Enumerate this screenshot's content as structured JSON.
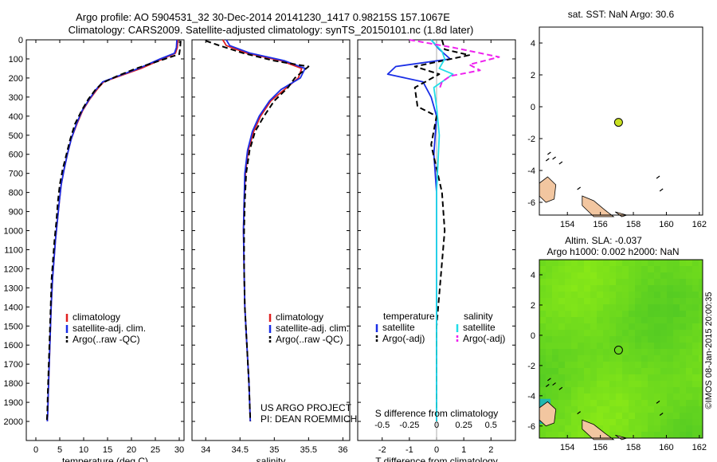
{
  "title": {
    "line1": "Argo profile: AO 5904531_32 30-Dec-2014 20141230_1417 0.98215S 157.1067E",
    "line2": "Climatology: CARS2009. Satellite-adjusted climatology: synTS_20150101.nc (1.8d later)"
  },
  "credit": "©IMOS 08-Jan-2015 20:00:35",
  "colors": {
    "climatology": "#e02020",
    "satellite": "#1a2ee6",
    "argo": "#000000",
    "salinity_satellite": "#22dde8",
    "salinity_argo": "#ee22ee",
    "land": "#f2c6a0",
    "float_marker": "#c8e020"
  },
  "chart_data": [
    {
      "type": "line",
      "name": "temperature-profile",
      "xlabel": "temperature (deg C)",
      "ylabel": "",
      "xlim": [
        -2,
        31
      ],
      "ylim": [
        2100,
        0
      ],
      "xticks": [
        0,
        5,
        10,
        15,
        20,
        25,
        30
      ],
      "yticks": [
        0,
        100,
        200,
        300,
        400,
        500,
        600,
        700,
        800,
        900,
        1000,
        1100,
        1200,
        1300,
        1400,
        1500,
        1600,
        1700,
        1800,
        1900,
        2000
      ],
      "legend": {
        "position": "bottom-right",
        "entries": [
          "climatology",
          "satellite-adj. clim.",
          "Argo(..raw -QC)"
        ]
      },
      "series": [
        {
          "name": "climatology",
          "style": "solid",
          "color": "#e02020",
          "x": [
            29.7,
            29.6,
            29.2,
            26.5,
            22.0,
            17.5,
            14.2,
            12.8,
            11.3,
            9.8,
            8.6,
            7.4,
            6.6,
            5.9,
            5.3,
            4.9,
            4.5,
            4.1,
            3.8,
            3.5,
            3.2,
            3.0,
            2.8,
            2.6,
            2.5,
            2.4
          ],
          "y": [
            0,
            40,
            70,
            100,
            150,
            190,
            220,
            260,
            310,
            370,
            440,
            520,
            600,
            680,
            760,
            850,
            950,
            1050,
            1150,
            1250,
            1400,
            1550,
            1700,
            1850,
            1950,
            2000
          ]
        },
        {
          "name": "satellite-adj. clim.",
          "style": "solid",
          "color": "#1a2ee6",
          "x": [
            29.5,
            29.4,
            29.0,
            26.0,
            21.5,
            17.2,
            14.0,
            12.6,
            11.2,
            9.7,
            8.5,
            7.4,
            6.6,
            5.9,
            5.3,
            4.9,
            4.5,
            4.1,
            3.8,
            3.5,
            3.2,
            3.0,
            2.8,
            2.6,
            2.5,
            2.4
          ],
          "y": [
            0,
            40,
            70,
            100,
            150,
            190,
            220,
            260,
            310,
            370,
            440,
            520,
            600,
            680,
            760,
            850,
            950,
            1050,
            1150,
            1250,
            1400,
            1550,
            1700,
            1850,
            1950,
            2000
          ]
        },
        {
          "name": "Argo(..raw -QC)",
          "style": "dashed",
          "color": "#000000",
          "x": [
            30.3,
            30.2,
            30.0,
            27.0,
            21.0,
            17.0,
            14.0,
            12.5,
            11.0,
            9.6,
            8.2,
            7.2,
            6.4,
            5.6,
            5.0,
            4.6,
            4.3,
            3.9,
            3.6,
            3.3,
            3.1,
            2.9,
            2.7,
            2.5,
            2.4,
            2.3
          ],
          "y": [
            5,
            40,
            75,
            100,
            150,
            190,
            225,
            260,
            310,
            370,
            440,
            520,
            600,
            680,
            760,
            850,
            950,
            1050,
            1150,
            1250,
            1400,
            1550,
            1700,
            1850,
            1950,
            2000
          ]
        }
      ]
    },
    {
      "type": "line",
      "name": "salinity-profile",
      "xlabel": "salinity",
      "ylabel": "",
      "xlim": [
        33.8,
        36.1
      ],
      "ylim": [
        2100,
        0
      ],
      "xticks": [
        34,
        34.5,
        35,
        35.5,
        36
      ],
      "legend": {
        "position": "bottom-right",
        "entries": [
          "climatology",
          "satellite-adj. clim.",
          "Argo(..raw -QC)"
        ]
      },
      "annotations": [
        "US ARGO PROJECT",
        "PI: DEAN ROEMMICH"
      ],
      "series": [
        {
          "name": "climatology",
          "style": "solid",
          "color": "#e02020",
          "x": [
            34.25,
            34.3,
            34.6,
            35.1,
            35.4,
            35.35,
            35.15,
            34.95,
            34.8,
            34.7,
            34.62,
            34.58,
            34.56,
            34.55,
            34.56,
            34.57,
            34.6,
            34.63,
            34.65
          ],
          "y": [
            0,
            30,
            70,
            110,
            150,
            200,
            260,
            320,
            400,
            480,
            580,
            700,
            850,
            1000,
            1200,
            1400,
            1600,
            1800,
            2000
          ]
        },
        {
          "name": "satellite-adj. clim.",
          "style": "solid",
          "color": "#1a2ee6",
          "x": [
            34.3,
            34.35,
            34.65,
            35.15,
            35.45,
            35.38,
            35.1,
            34.93,
            34.78,
            34.68,
            34.61,
            34.57,
            34.56,
            34.55,
            34.56,
            34.57,
            34.6,
            34.63,
            34.65
          ],
          "y": [
            0,
            30,
            70,
            110,
            150,
            200,
            260,
            320,
            400,
            480,
            580,
            700,
            850,
            1000,
            1200,
            1400,
            1600,
            1800,
            2000
          ]
        },
        {
          "name": "Argo(..raw -QC)",
          "style": "dashed",
          "color": "#000000",
          "x": [
            34.0,
            34.2,
            34.55,
            35.0,
            35.5,
            35.3,
            35.2,
            35.0,
            34.85,
            34.72,
            34.64,
            34.59,
            34.57,
            34.56,
            34.56,
            34.57,
            34.6,
            34.63,
            34.65
          ],
          "y": [
            5,
            30,
            70,
            110,
            140,
            200,
            250,
            320,
            400,
            480,
            580,
            700,
            850,
            1000,
            1200,
            1400,
            1600,
            1800,
            2000
          ]
        }
      ]
    },
    {
      "type": "line",
      "name": "difference-profile",
      "xlabel": "T difference from climatology",
      "x2label": "S difference from climatology",
      "ylabel": "",
      "xlim": [
        -2.9,
        2.9
      ],
      "ylim": [
        2100,
        0
      ],
      "xticks": [
        -2,
        -1,
        0,
        1,
        2
      ],
      "x2ticks": [
        "-0.5",
        "-0.25",
        "0",
        "0.25",
        "0.5"
      ],
      "x2tick_positions_T": [
        -2,
        -1,
        0,
        1,
        2
      ],
      "legend": {
        "position": "bottom",
        "temperature_header": "temperature",
        "salinity_header": "salinity",
        "entries": [
          "satellite",
          "Argo(-adj)",
          "satellite",
          "Argo(-adj)"
        ]
      },
      "series": [
        {
          "name": "T satellite",
          "style": "solid",
          "color": "#1a2ee6",
          "x": [
            -0.2,
            0.1,
            0.5,
            -1.5,
            -1.8,
            -0.5,
            -0.2,
            0.0,
            -0.1,
            0.0,
            0.0,
            0.0,
            0.0
          ],
          "y": [
            0,
            50,
            100,
            140,
            180,
            220,
            300,
            400,
            600,
            800,
            1200,
            1600,
            2000
          ]
        },
        {
          "name": "T Argo(-adj)",
          "style": "dashed",
          "color": "#000000",
          "x": [
            0.2,
            0.3,
            1.2,
            -0.8,
            0.1,
            -0.8,
            -0.7,
            0.0,
            -0.2,
            0.2,
            0.3,
            0.0,
            0.0
          ],
          "y": [
            0,
            50,
            80,
            140,
            180,
            250,
            350,
            400,
            550,
            800,
            1000,
            1500,
            2000
          ]
        },
        {
          "name": "S satellite",
          "style": "solid",
          "color": "#22dde8",
          "x": [
            -0.2,
            0.2,
            0.3,
            0.1,
            0.6,
            -0.1,
            0.0,
            0.1,
            0.0,
            0.0,
            0.0,
            0.0
          ],
          "y": [
            0,
            60,
            100,
            150,
            180,
            250,
            350,
            500,
            800,
            1200,
            1600,
            2000
          ]
        },
        {
          "name": "S Argo(-adj)",
          "style": "dashed",
          "color": "#ee22ee",
          "x": [
            -1.0,
            0.6,
            2.3,
            1.2,
            1.6,
            0.5,
            0.2,
            0.1
          ],
          "y": [
            0,
            40,
            90,
            130,
            160,
            190,
            220,
            260
          ]
        }
      ]
    },
    {
      "type": "scatter",
      "name": "sst-map",
      "title": "sat. SST: NaN Argo: 30.6",
      "xlim": [
        152.3,
        162.2
      ],
      "ylim": [
        -6.8,
        5.0
      ],
      "xticks": [
        154,
        156,
        158,
        160,
        162
      ],
      "yticks": [
        4,
        2,
        0,
        -2,
        -4,
        -6
      ],
      "points": [
        {
          "name": "Argo float",
          "x": 157.1,
          "y": -0.98
        }
      ]
    },
    {
      "type": "heatmap",
      "name": "sla-map",
      "title": "Altim. SLA: -0.037",
      "subtitle": "Argo h1000: 0.002 h2000: NaN",
      "xlim": [
        152.3,
        162.2
      ],
      "ylim": [
        -6.8,
        5.0
      ],
      "xticks": [
        154,
        156,
        158,
        160,
        162
      ],
      "yticks": [
        4,
        2,
        0,
        -2,
        -4,
        -6
      ],
      "points": [
        {
          "name": "Argo float",
          "x": 157.1,
          "y": -0.98
        }
      ]
    }
  ]
}
